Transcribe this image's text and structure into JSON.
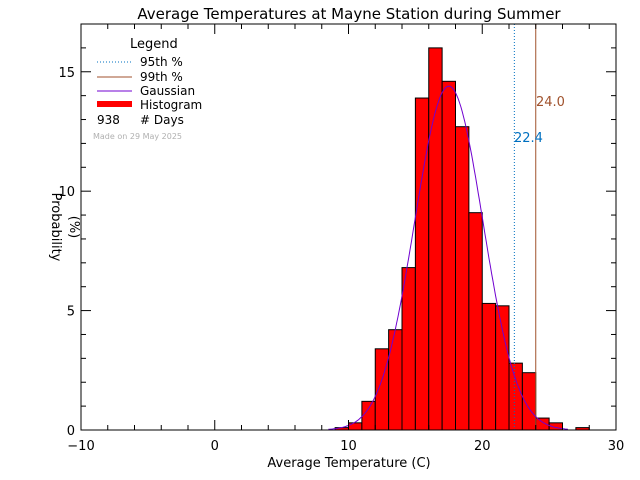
{
  "chart_data": {
    "type": "bar",
    "title": "Average Temperatures at Mayne Station during Summer",
    "xlabel": "Average Temperature (C)",
    "ylabel_line1": "Probability",
    "ylabel_line2": "(%)",
    "xlim": [
      -10,
      30
    ],
    "ylim": [
      0,
      17
    ],
    "x_ticks": [
      -10,
      0,
      10,
      20,
      30
    ],
    "x_tick_labels": [
      "−10",
      "0",
      "10",
      "20",
      "30"
    ],
    "y_ticks": [
      0,
      5,
      10,
      15
    ],
    "y_tick_labels": [
      "0",
      "5",
      "10",
      "15"
    ],
    "bin_width": 1,
    "bins_left": [
      9,
      10,
      11,
      12,
      13,
      14,
      15,
      16,
      17,
      18,
      19,
      20,
      21,
      22,
      23,
      24,
      25,
      26,
      27
    ],
    "values": [
      0.1,
      0.3,
      1.2,
      3.4,
      4.2,
      6.8,
      13.9,
      16.0,
      14.6,
      12.7,
      9.1,
      5.3,
      5.2,
      2.8,
      2.4,
      0.5,
      0.3,
      0.0,
      0.1
    ],
    "gaussian": {
      "mean": 17.5,
      "sd": 2.55,
      "peak": 14.4
    },
    "percentile_95": {
      "value": 22.4,
      "label": "22.4",
      "color": "#0070c0"
    },
    "percentile_99": {
      "value": 24.0,
      "label": "24.0",
      "color": "#a0522d"
    },
    "colors": {
      "histogram": "#ff0000",
      "gaussian": "#7000d0",
      "p95": "#0070c0",
      "p99": "#a0522d"
    },
    "legend": {
      "title": "Legend",
      "items": [
        {
          "label": "95th %",
          "style": "dotted",
          "color": "#0070c0"
        },
        {
          "label": "99th %",
          "style": "solid",
          "color": "#a0522d"
        },
        {
          "label": "Gaussian",
          "style": "solid",
          "color": "#7000d0"
        },
        {
          "label": "Histogram",
          "style": "thick",
          "color": "#ff0000"
        }
      ],
      "count_value": "938",
      "count_label": "# Days",
      "made_on": "Made on 29 May 2025"
    }
  }
}
